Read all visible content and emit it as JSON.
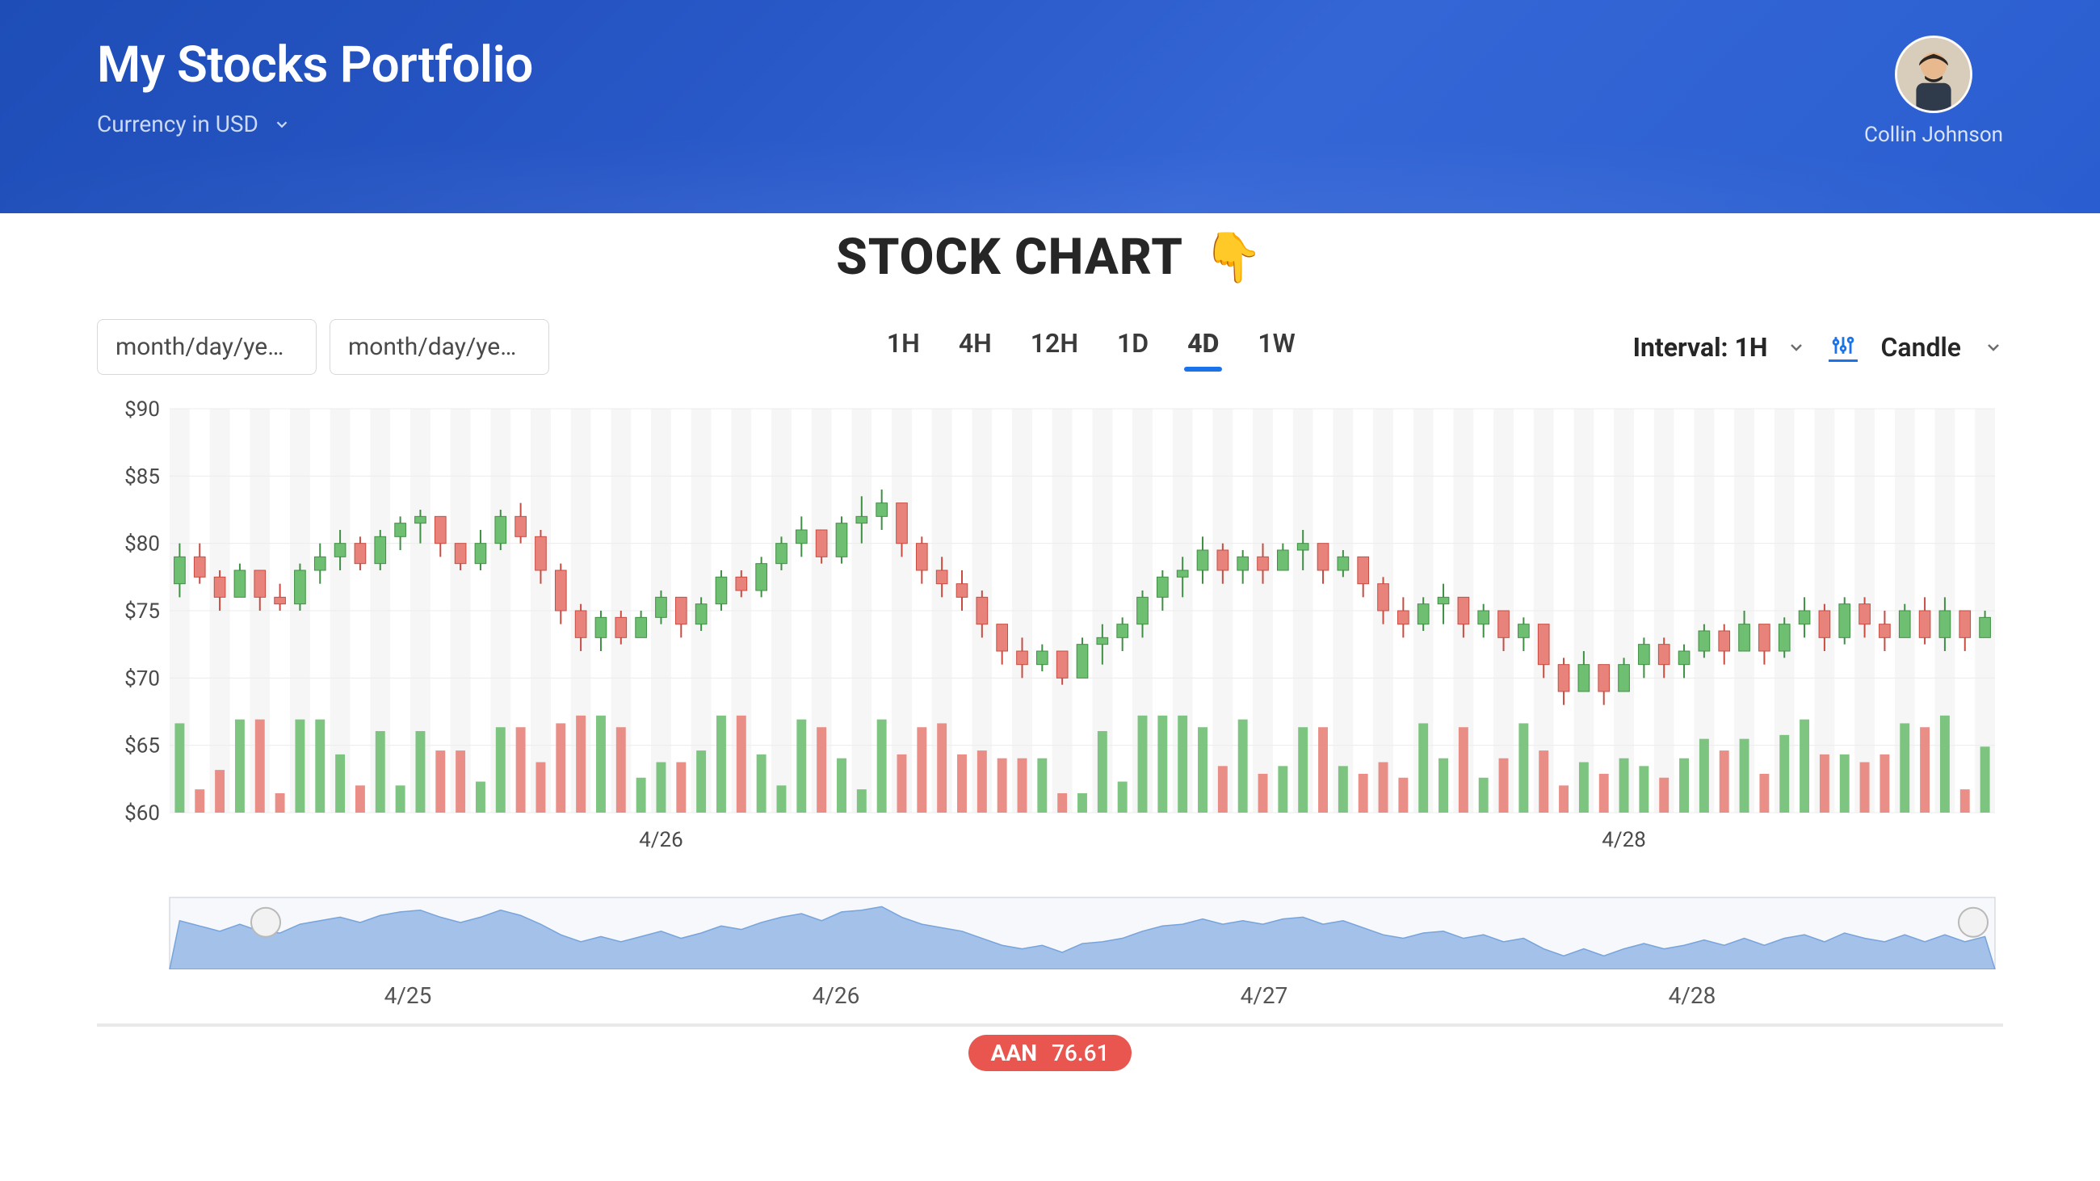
{
  "header": {
    "title": "My Stocks Portfolio",
    "currency_label": "Currency in USD",
    "user_name": "Collin Johnson"
  },
  "chart_header": {
    "title": "STOCK CHART",
    "emoji": "👇"
  },
  "controls": {
    "date_placeholder_1": "month/day/ye…",
    "date_placeholder_2": "month/day/ye…",
    "ranges": [
      "1H",
      "4H",
      "12H",
      "1D",
      "4D",
      "1W"
    ],
    "active_range": "4D",
    "interval_label": "Interval: 1H",
    "chart_type_label": "Candle"
  },
  "chart": {
    "type": "candlestick",
    "y_axis_prefix": "$",
    "ylim": [
      60,
      90
    ],
    "ytick_step": 5,
    "y_ticks": [
      60,
      65,
      70,
      75,
      80,
      85,
      90
    ],
    "x_labels": [
      {
        "i": 24,
        "label": "4/26"
      },
      {
        "i": 72,
        "label": "4/28"
      }
    ],
    "colors": {
      "up": "#6fbf73",
      "down": "#e8837b",
      "wick_up": "#3f8f44",
      "wick_down": "#c84c42",
      "grid": "#ececec",
      "grid_alt": "#f6f6f6",
      "axis_text": "#4a4a4a",
      "background": "#ffffff"
    },
    "title_fontsize": 62,
    "label_fontsize": 26,
    "candles": [
      {
        "o": 77,
        "h": 80,
        "l": 76,
        "c": 79,
        "v": 46
      },
      {
        "o": 79,
        "h": 80,
        "l": 77,
        "c": 77.5,
        "v": 12
      },
      {
        "o": 77.5,
        "h": 78,
        "l": 75,
        "c": 76,
        "v": 22
      },
      {
        "o": 76,
        "h": 78.5,
        "l": 76,
        "c": 78,
        "v": 48
      },
      {
        "o": 78,
        "h": 78,
        "l": 75,
        "c": 76,
        "v": 48
      },
      {
        "o": 76,
        "h": 77,
        "l": 75,
        "c": 75.5,
        "v": 10
      },
      {
        "o": 75.5,
        "h": 78.5,
        "l": 75,
        "c": 78,
        "v": 48
      },
      {
        "o": 78,
        "h": 80,
        "l": 77,
        "c": 79,
        "v": 48
      },
      {
        "o": 79,
        "h": 81,
        "l": 78,
        "c": 80,
        "v": 30
      },
      {
        "o": 80,
        "h": 80.5,
        "l": 78,
        "c": 78.5,
        "v": 14
      },
      {
        "o": 78.5,
        "h": 81,
        "l": 78,
        "c": 80.5,
        "v": 42
      },
      {
        "o": 80.5,
        "h": 82,
        "l": 79.5,
        "c": 81.5,
        "v": 14
      },
      {
        "o": 81.5,
        "h": 82.5,
        "l": 80,
        "c": 82,
        "v": 42
      },
      {
        "o": 82,
        "h": 82,
        "l": 79,
        "c": 80,
        "v": 32
      },
      {
        "o": 80,
        "h": 80,
        "l": 78,
        "c": 78.5,
        "v": 32
      },
      {
        "o": 78.5,
        "h": 81,
        "l": 78,
        "c": 80,
        "v": 16
      },
      {
        "o": 80,
        "h": 82.5,
        "l": 79.5,
        "c": 82,
        "v": 44
      },
      {
        "o": 82,
        "h": 83,
        "l": 80,
        "c": 80.5,
        "v": 44
      },
      {
        "o": 80.5,
        "h": 81,
        "l": 77,
        "c": 78,
        "v": 26
      },
      {
        "o": 78,
        "h": 78.5,
        "l": 74,
        "c": 75,
        "v": 46
      },
      {
        "o": 75,
        "h": 75.5,
        "l": 72,
        "c": 73,
        "v": 50
      },
      {
        "o": 73,
        "h": 75,
        "l": 72,
        "c": 74.5,
        "v": 50
      },
      {
        "o": 74.5,
        "h": 75,
        "l": 72.5,
        "c": 73,
        "v": 44
      },
      {
        "o": 73,
        "h": 75,
        "l": 73,
        "c": 74.5,
        "v": 18
      },
      {
        "o": 74.5,
        "h": 76.5,
        "l": 74,
        "c": 76,
        "v": 26
      },
      {
        "o": 76,
        "h": 76,
        "l": 73,
        "c": 74,
        "v": 26
      },
      {
        "o": 74,
        "h": 76,
        "l": 73.5,
        "c": 75.5,
        "v": 32
      },
      {
        "o": 75.5,
        "h": 78,
        "l": 75,
        "c": 77.5,
        "v": 50
      },
      {
        "o": 77.5,
        "h": 78,
        "l": 76,
        "c": 76.5,
        "v": 50
      },
      {
        "o": 76.5,
        "h": 79,
        "l": 76,
        "c": 78.5,
        "v": 30
      },
      {
        "o": 78.5,
        "h": 80.5,
        "l": 78,
        "c": 80,
        "v": 14
      },
      {
        "o": 80,
        "h": 82,
        "l": 79,
        "c": 81,
        "v": 48
      },
      {
        "o": 81,
        "h": 81,
        "l": 78.5,
        "c": 79,
        "v": 44
      },
      {
        "o": 79,
        "h": 82,
        "l": 78.5,
        "c": 81.5,
        "v": 28
      },
      {
        "o": 81.5,
        "h": 83.5,
        "l": 80,
        "c": 82,
        "v": 12
      },
      {
        "o": 82,
        "h": 84,
        "l": 81,
        "c": 83,
        "v": 48
      },
      {
        "o": 83,
        "h": 83,
        "l": 79,
        "c": 80,
        "v": 30
      },
      {
        "o": 80,
        "h": 80.5,
        "l": 77,
        "c": 78,
        "v": 44
      },
      {
        "o": 78,
        "h": 79,
        "l": 76,
        "c": 77,
        "v": 46
      },
      {
        "o": 77,
        "h": 78,
        "l": 75,
        "c": 76,
        "v": 30
      },
      {
        "o": 76,
        "h": 76.5,
        "l": 73,
        "c": 74,
        "v": 32
      },
      {
        "o": 74,
        "h": 74,
        "l": 71,
        "c": 72,
        "v": 28
      },
      {
        "o": 72,
        "h": 73,
        "l": 70,
        "c": 71,
        "v": 28
      },
      {
        "o": 71,
        "h": 72.5,
        "l": 70.5,
        "c": 72,
        "v": 28
      },
      {
        "o": 72,
        "h": 72,
        "l": 69.5,
        "c": 70,
        "v": 10
      },
      {
        "o": 70,
        "h": 73,
        "l": 70,
        "c": 72.5,
        "v": 10
      },
      {
        "o": 72.5,
        "h": 74,
        "l": 71,
        "c": 73,
        "v": 42
      },
      {
        "o": 73,
        "h": 74.5,
        "l": 72,
        "c": 74,
        "v": 16
      },
      {
        "o": 74,
        "h": 76.5,
        "l": 73,
        "c": 76,
        "v": 50
      },
      {
        "o": 76,
        "h": 78,
        "l": 75,
        "c": 77.5,
        "v": 50
      },
      {
        "o": 77.5,
        "h": 79,
        "l": 76,
        "c": 78,
        "v": 50
      },
      {
        "o": 78,
        "h": 80.5,
        "l": 77,
        "c": 79.5,
        "v": 44
      },
      {
        "o": 79.5,
        "h": 80,
        "l": 77,
        "c": 78,
        "v": 24
      },
      {
        "o": 78,
        "h": 79.5,
        "l": 77,
        "c": 79,
        "v": 48
      },
      {
        "o": 79,
        "h": 80,
        "l": 77,
        "c": 78,
        "v": 20
      },
      {
        "o": 78,
        "h": 80,
        "l": 78,
        "c": 79.5,
        "v": 24
      },
      {
        "o": 79.5,
        "h": 81,
        "l": 78,
        "c": 80,
        "v": 44
      },
      {
        "o": 80,
        "h": 80,
        "l": 77,
        "c": 78,
        "v": 44
      },
      {
        "o": 78,
        "h": 79.5,
        "l": 77.5,
        "c": 79,
        "v": 24
      },
      {
        "o": 79,
        "h": 79,
        "l": 76,
        "c": 77,
        "v": 20
      },
      {
        "o": 77,
        "h": 77.5,
        "l": 74,
        "c": 75,
        "v": 26
      },
      {
        "o": 75,
        "h": 76,
        "l": 73,
        "c": 74,
        "v": 18
      },
      {
        "o": 74,
        "h": 76,
        "l": 73.5,
        "c": 75.5,
        "v": 46
      },
      {
        "o": 75.5,
        "h": 77,
        "l": 74,
        "c": 76,
        "v": 28
      },
      {
        "o": 76,
        "h": 76,
        "l": 73,
        "c": 74,
        "v": 44
      },
      {
        "o": 74,
        "h": 75.5,
        "l": 73,
        "c": 75,
        "v": 18
      },
      {
        "o": 75,
        "h": 75,
        "l": 72,
        "c": 73,
        "v": 28
      },
      {
        "o": 73,
        "h": 74.5,
        "l": 72,
        "c": 74,
        "v": 46
      },
      {
        "o": 74,
        "h": 74,
        "l": 70,
        "c": 71,
        "v": 32
      },
      {
        "o": 71,
        "h": 71.5,
        "l": 68,
        "c": 69,
        "v": 14
      },
      {
        "o": 69,
        "h": 72,
        "l": 69,
        "c": 71,
        "v": 26
      },
      {
        "o": 71,
        "h": 71,
        "l": 68,
        "c": 69,
        "v": 20
      },
      {
        "o": 69,
        "h": 71.5,
        "l": 69,
        "c": 71,
        "v": 28
      },
      {
        "o": 71,
        "h": 73,
        "l": 70,
        "c": 72.5,
        "v": 24
      },
      {
        "o": 72.5,
        "h": 73,
        "l": 70,
        "c": 71,
        "v": 18
      },
      {
        "o": 71,
        "h": 72.5,
        "l": 70,
        "c": 72,
        "v": 28
      },
      {
        "o": 72,
        "h": 74,
        "l": 71.5,
        "c": 73.5,
        "v": 38
      },
      {
        "o": 73.5,
        "h": 74,
        "l": 71,
        "c": 72,
        "v": 32
      },
      {
        "o": 72,
        "h": 75,
        "l": 72,
        "c": 74,
        "v": 38
      },
      {
        "o": 74,
        "h": 74,
        "l": 71,
        "c": 72,
        "v": 20
      },
      {
        "o": 72,
        "h": 74.5,
        "l": 71.5,
        "c": 74,
        "v": 40
      },
      {
        "o": 74,
        "h": 76,
        "l": 73,
        "c": 75,
        "v": 48
      },
      {
        "o": 75,
        "h": 75.5,
        "l": 72,
        "c": 73,
        "v": 30
      },
      {
        "o": 73,
        "h": 76,
        "l": 72.5,
        "c": 75.5,
        "v": 30
      },
      {
        "o": 75.5,
        "h": 76,
        "l": 73,
        "c": 74,
        "v": 26
      },
      {
        "o": 74,
        "h": 75,
        "l": 72,
        "c": 73,
        "v": 30
      },
      {
        "o": 73,
        "h": 75.5,
        "l": 73,
        "c": 75,
        "v": 46
      },
      {
        "o": 75,
        "h": 76,
        "l": 72.5,
        "c": 73,
        "v": 44
      },
      {
        "o": 73,
        "h": 76,
        "l": 72,
        "c": 75,
        "v": 50
      },
      {
        "o": 75,
        "h": 75,
        "l": 72,
        "c": 73,
        "v": 12
      },
      {
        "o": 73,
        "h": 75,
        "l": 73,
        "c": 74.5,
        "v": 34
      }
    ],
    "volume_max": 52
  },
  "overview": {
    "x_labels": [
      "4/25",
      "4/26",
      "4/27",
      "4/28"
    ],
    "color_fill": "#9bbce8",
    "color_stroke": "#6a9bd8",
    "background": "#f6f8fb",
    "border": "#d7dbe0"
  },
  "ticker": {
    "symbol": "AAN",
    "price": "76.61",
    "pill_color": "#e8564f"
  }
}
